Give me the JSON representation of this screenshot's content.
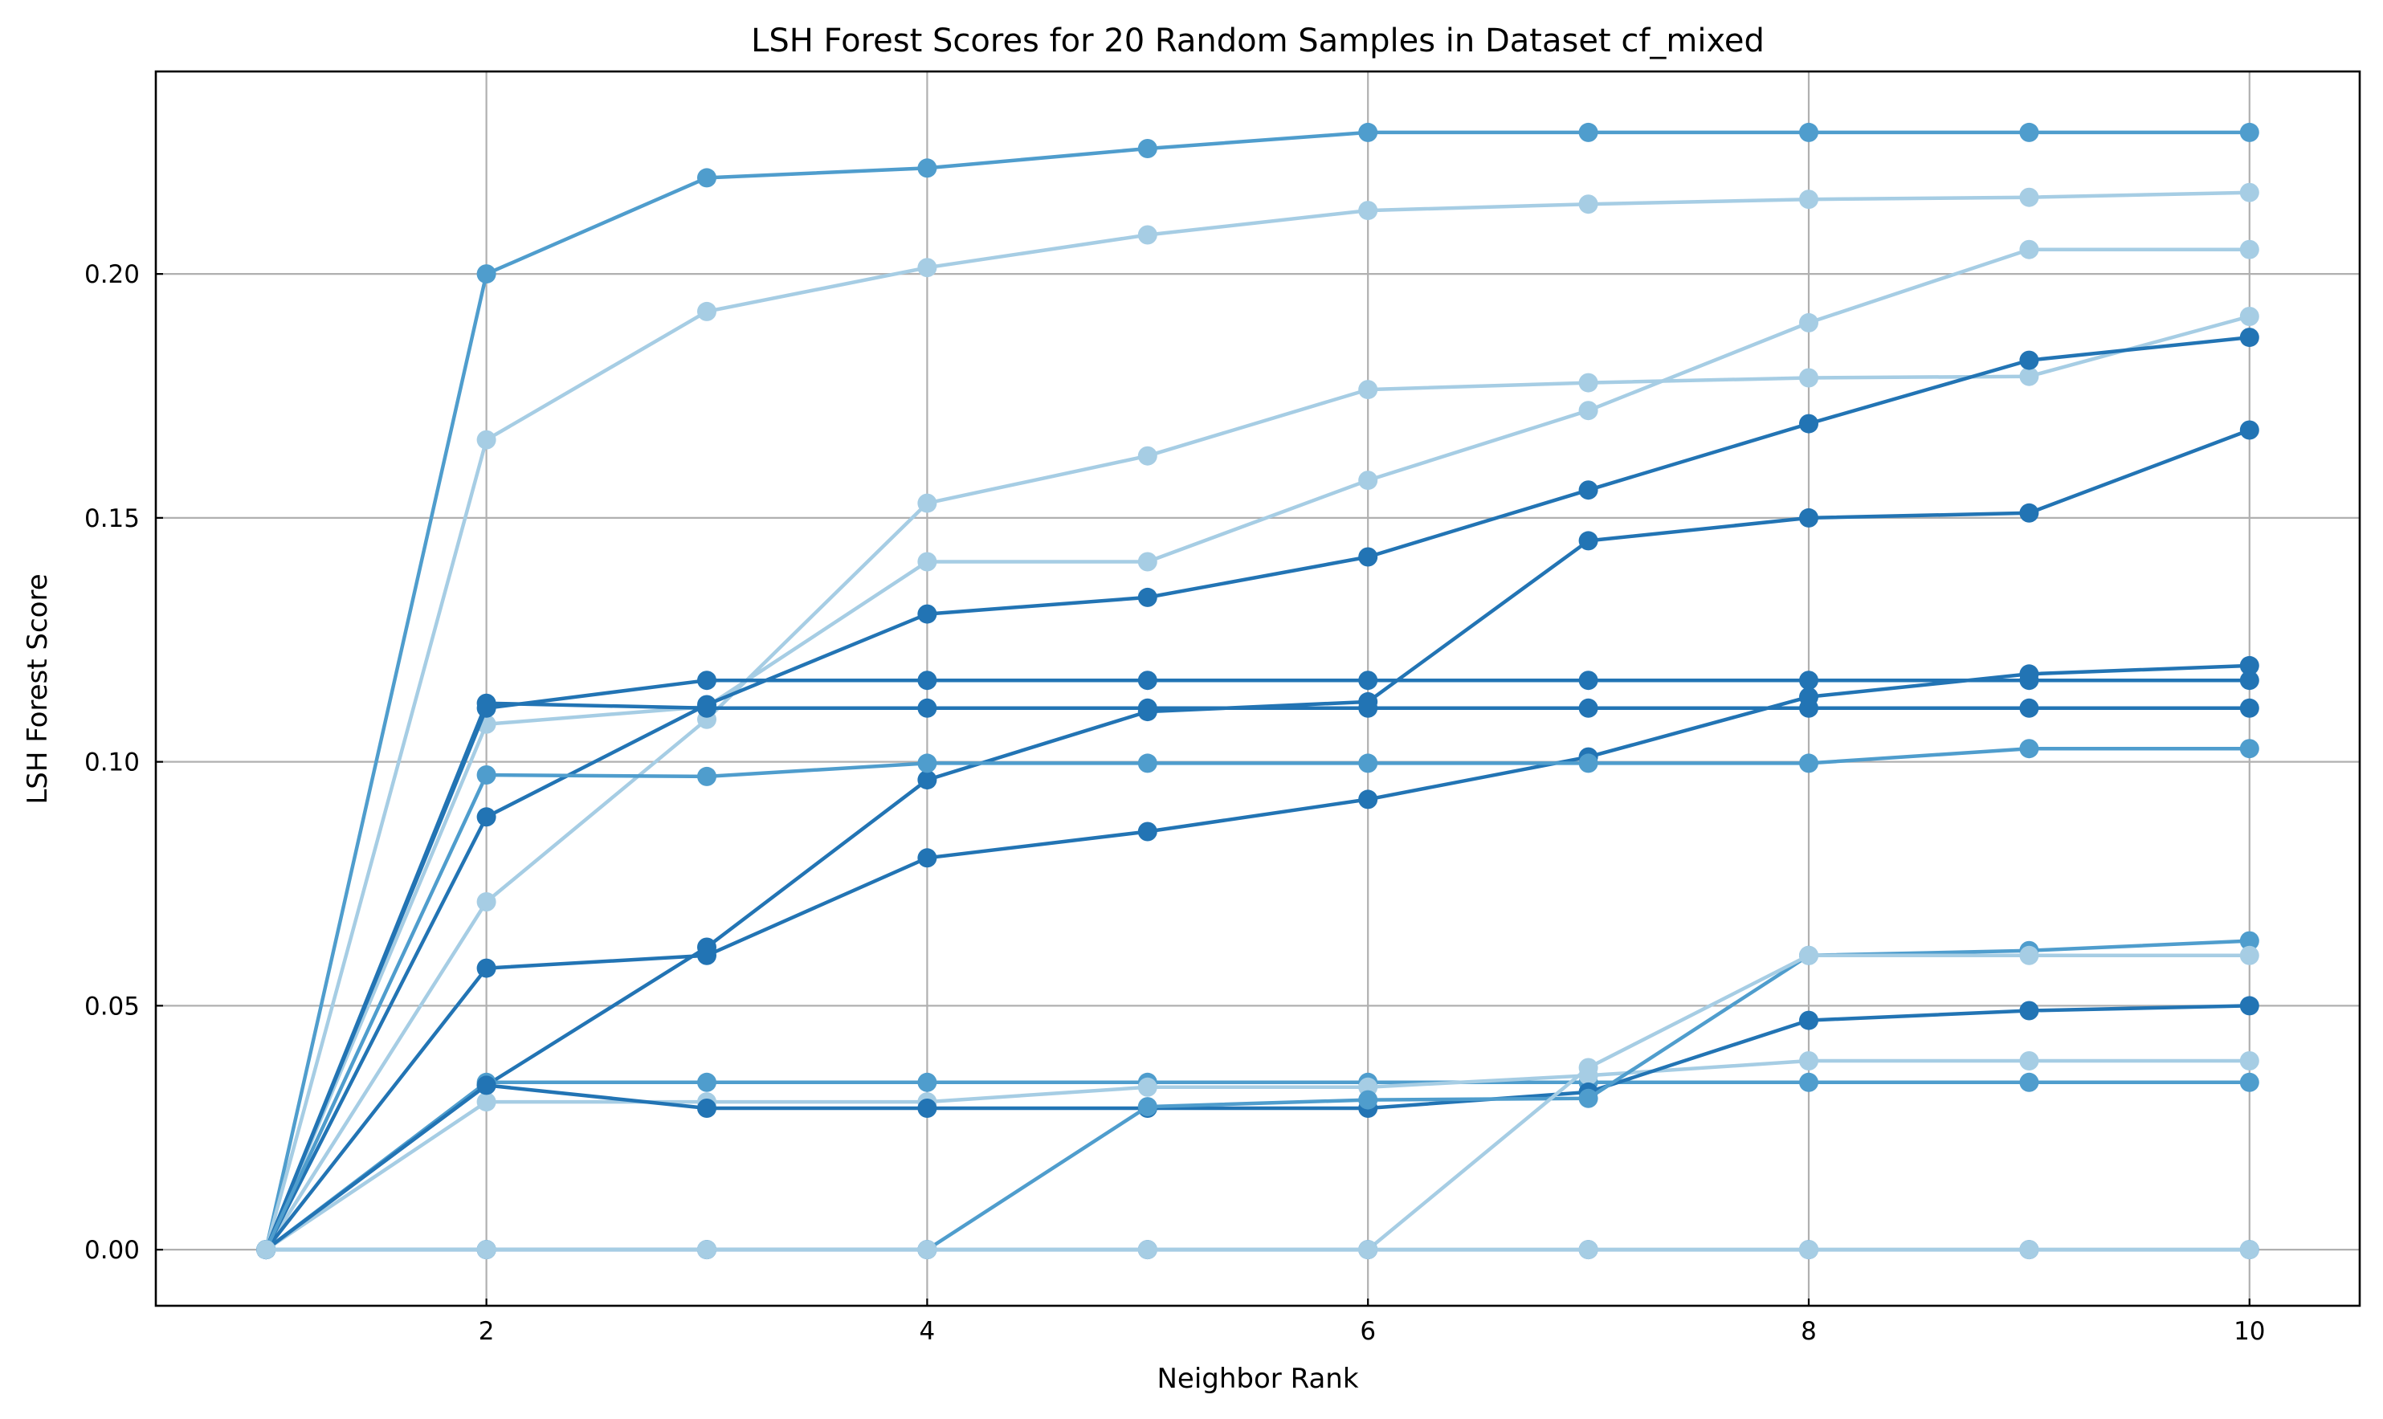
{
  "chart_data": {
    "type": "line",
    "title": "LSH Forest Scores for 20 Random Samples in Dataset cf_mixed",
    "xlabel": "Neighbor Rank",
    "ylabel": "LSH Forest Score",
    "xlim": [
      0.5,
      10.5
    ],
    "ylim": [
      -0.0115,
      0.2415
    ],
    "x_ticks": [
      2,
      4,
      6,
      8,
      10
    ],
    "x_tick_labels": [
      "2",
      "4",
      "6",
      "8",
      "10"
    ],
    "y_ticks": [
      0.0,
      0.05,
      0.1,
      0.15,
      0.2
    ],
    "y_tick_labels": [
      "0.00",
      "0.05",
      "0.10",
      "0.15",
      "0.20"
    ],
    "grid": true,
    "x": [
      1,
      2,
      3,
      4,
      5,
      6,
      7,
      8,
      9,
      10
    ],
    "series": [
      {
        "color": "#4f9dcd",
        "values": [
          0,
          0.2,
          0.2197,
          0.2217,
          0.2257,
          0.229,
          0.229,
          0.229,
          0.229,
          0.229
        ]
      },
      {
        "color": "#a6cde4",
        "values": [
          0,
          0.166,
          0.1923,
          0.2013,
          0.208,
          0.213,
          0.2143,
          0.2153,
          0.2157,
          0.2167
        ]
      },
      {
        "color": "#a6cde4",
        "values": [
          0,
          0.0713,
          0.1087,
          0.153,
          0.1627,
          0.1763,
          0.1777,
          0.1787,
          0.179,
          0.1913
        ]
      },
      {
        "color": "#a6cde4",
        "values": [
          0,
          0.1077,
          0.1113,
          0.141,
          0.141,
          0.1577,
          0.172,
          0.19,
          0.205,
          0.205
        ]
      },
      {
        "color": "#2274b4",
        "values": [
          0,
          0.0887,
          0.1117,
          0.1303,
          0.1337,
          0.142,
          0.1557,
          0.1693,
          0.1823,
          0.187
        ]
      },
      {
        "color": "#2274b4",
        "values": [
          0,
          0.0337,
          0.062,
          0.0963,
          0.1103,
          0.1123,
          0.1453,
          0.15,
          0.151,
          0.168
        ]
      },
      {
        "color": "#2274b4",
        "values": [
          0,
          0.111,
          0.1167,
          0.1167,
          0.1167,
          0.1167,
          0.1167,
          0.1167,
          0.1167,
          0.1167
        ]
      },
      {
        "color": "#2274b4",
        "values": [
          0,
          0.112,
          0.111,
          0.111,
          0.111,
          0.111,
          0.111,
          0.111,
          0.111,
          0.111
        ]
      },
      {
        "color": "#2274b4",
        "values": [
          0,
          0.0577,
          0.0603,
          0.0803,
          0.0857,
          0.0923,
          0.101,
          0.1133,
          0.118,
          0.1197
        ]
      },
      {
        "color": "#4f9dcd",
        "values": [
          0,
          0.0973,
          0.097,
          0.0997,
          0.0997,
          0.0997,
          0.0997,
          0.0997,
          0.1027,
          0.1027
        ]
      },
      {
        "color": "#4f9dcd",
        "values": [
          0,
          0.0343,
          0.0343,
          0.0343,
          0.0343,
          0.0343,
          0.0343,
          0.0343,
          0.0343,
          0.0343
        ]
      },
      {
        "color": "#a6cde4",
        "values": [
          0,
          0.0303,
          0.0303,
          0.0303,
          0.0333,
          0.0333,
          0.0357,
          0.0387,
          0.0387,
          0.0387
        ]
      },
      {
        "color": "#2274b4",
        "values": [
          0,
          0.0337,
          0.029,
          0.029,
          0.029,
          0.029,
          0.0323,
          0.047,
          0.049,
          0.05
        ]
      },
      {
        "color": "#4f9dcd",
        "values": [
          0,
          0,
          0,
          0,
          0.0293,
          0.0307,
          0.031,
          0.0603,
          0.0613,
          0.0633
        ]
      },
      {
        "color": "#a6cde4",
        "values": [
          0,
          0,
          0,
          0,
          0,
          0,
          0.0373,
          0.0603,
          0.0603,
          0.0603
        ]
      },
      {
        "color": "#2274b4",
        "values": [
          0,
          0,
          0,
          0,
          0,
          0,
          0,
          0,
          0,
          0
        ]
      },
      {
        "color": "#a6cde4",
        "values": [
          0,
          0,
          0,
          0,
          0,
          0,
          0,
          0,
          0,
          0
        ]
      }
    ]
  }
}
